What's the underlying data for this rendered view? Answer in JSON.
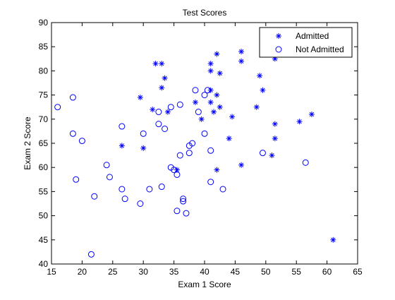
{
  "chart_data": {
    "type": "scatter",
    "title": "Test Scores",
    "xlabel": "Exam 1 Score",
    "ylabel": "Exam 2 Score",
    "xlim": [
      15,
      65
    ],
    "ylim": [
      40,
      90
    ],
    "xticks": [
      15,
      20,
      25,
      30,
      35,
      40,
      45,
      50,
      55,
      60,
      65
    ],
    "yticks": [
      40,
      45,
      50,
      55,
      60,
      65,
      70,
      75,
      80,
      85,
      90
    ],
    "grid": false,
    "legend_position": "top-right",
    "marker_color": "#0000ff",
    "series": [
      {
        "name": "Admitted",
        "marker": "asterisk",
        "points": [
          [
            32.0,
            81.5
          ],
          [
            33.0,
            81.5
          ],
          [
            42.0,
            83.5
          ],
          [
            46.0,
            84.0
          ],
          [
            46.0,
            82.0
          ],
          [
            41.0,
            81.5
          ],
          [
            41.0,
            80.0
          ],
          [
            42.5,
            79.5
          ],
          [
            51.5,
            82.5
          ],
          [
            49.0,
            79.0
          ],
          [
            33.5,
            78.5
          ],
          [
            33.0,
            76.5
          ],
          [
            29.5,
            74.5
          ],
          [
            41.0,
            76.0
          ],
          [
            42.0,
            75.0
          ],
          [
            49.5,
            76.0
          ],
          [
            38.5,
            73.5
          ],
          [
            41.0,
            73.5
          ],
          [
            42.5,
            72.5
          ],
          [
            48.5,
            72.5
          ],
          [
            31.5,
            72.0
          ],
          [
            34.0,
            71.5
          ],
          [
            39.5,
            70.0
          ],
          [
            41.5,
            71.5
          ],
          [
            44.5,
            70.5
          ],
          [
            57.5,
            71.0
          ],
          [
            55.5,
            69.5
          ],
          [
            51.5,
            69.0
          ],
          [
            51.5,
            66.0
          ],
          [
            44.0,
            66.0
          ],
          [
            26.5,
            64.5
          ],
          [
            30.0,
            64.0
          ],
          [
            51.0,
            62.5
          ],
          [
            46.0,
            60.5
          ],
          [
            42.0,
            59.5
          ],
          [
            35.5,
            59.5
          ],
          [
            61.0,
            45.0
          ]
        ]
      },
      {
        "name": "Not Admitted",
        "marker": "circle",
        "points": [
          [
            16.0,
            72.5
          ],
          [
            18.5,
            74.5
          ],
          [
            18.5,
            67.0
          ],
          [
            20.0,
            65.5
          ],
          [
            19.0,
            57.5
          ],
          [
            22.0,
            54.0
          ],
          [
            21.5,
            42.0
          ],
          [
            24.0,
            60.5
          ],
          [
            24.5,
            58.0
          ],
          [
            26.5,
            68.5
          ],
          [
            26.5,
            55.5
          ],
          [
            27.0,
            53.5
          ],
          [
            29.5,
            52.5
          ],
          [
            30.0,
            67.0
          ],
          [
            31.0,
            55.5
          ],
          [
            32.5,
            71.5
          ],
          [
            32.5,
            69.0
          ],
          [
            33.0,
            56.0
          ],
          [
            33.5,
            68.0
          ],
          [
            34.5,
            72.5
          ],
          [
            34.5,
            60.0
          ],
          [
            35.0,
            59.5
          ],
          [
            35.5,
            58.5
          ],
          [
            35.5,
            51.0
          ],
          [
            36.0,
            73.0
          ],
          [
            36.0,
            62.5
          ],
          [
            36.5,
            53.5
          ],
          [
            36.5,
            53.0
          ],
          [
            37.0,
            50.5
          ],
          [
            37.5,
            63.0
          ],
          [
            37.5,
            64.5
          ],
          [
            38.0,
            65.0
          ],
          [
            38.5,
            76.0
          ],
          [
            39.0,
            71.5
          ],
          [
            40.0,
            75.0
          ],
          [
            40.5,
            76.0
          ],
          [
            40.0,
            67.0
          ],
          [
            41.0,
            63.5
          ],
          [
            41.0,
            57.0
          ],
          [
            43.0,
            55.5
          ],
          [
            49.5,
            63.0
          ],
          [
            56.5,
            61.0
          ]
        ]
      }
    ]
  }
}
